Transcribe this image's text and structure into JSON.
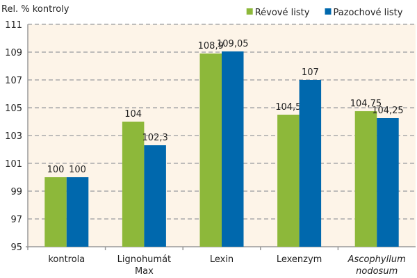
{
  "chart_data": {
    "type": "bar",
    "ylabel": "Rel. % kontroly",
    "categories": [
      {
        "lines": [
          "kontrola"
        ],
        "italic": false
      },
      {
        "lines": [
          "Lignohumát",
          "Max"
        ],
        "italic": false
      },
      {
        "lines": [
          "Lexin"
        ],
        "italic": false
      },
      {
        "lines": [
          "Lexenzym"
        ],
        "italic": false
      },
      {
        "lines": [
          "Ascophyllum",
          "nodosum"
        ],
        "italic": true
      }
    ],
    "series": [
      {
        "name": "Révové listy",
        "color": "#8db83a",
        "values": [
          100,
          104,
          108.9,
          104.5,
          104.75
        ],
        "labels": [
          "100",
          "104",
          "108,9",
          "104,5",
          "104,75"
        ]
      },
      {
        "name": "Pazochové listy",
        "color": "#0068ad",
        "values": [
          100,
          102.3,
          109.05,
          107,
          104.25
        ],
        "labels": [
          "100",
          "102,3",
          "109,05",
          "107",
          "104,25"
        ]
      }
    ],
    "ylim": [
      95,
      111
    ],
    "yticks": [
      95,
      97,
      99,
      101,
      103,
      105,
      107,
      109,
      111
    ],
    "grid": true,
    "legend_position": "top-right",
    "plot_background": "#fdf4e8"
  }
}
